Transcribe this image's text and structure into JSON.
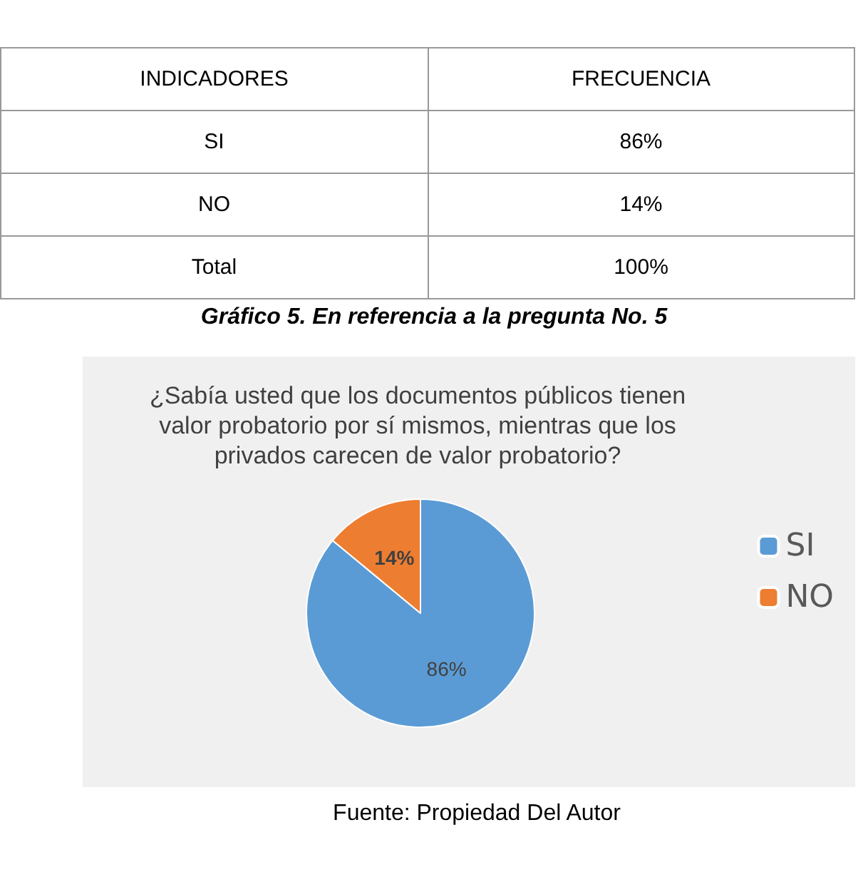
{
  "chart_data": {
    "type": "pie",
    "title": "¿Sabía usted que los documentos públicos tienen\nvalor probatorio por sí mismos, mientras que los\nprivados carecen de valor probatorio?",
    "categories": [
      "SI",
      "NO"
    ],
    "values": [
      86,
      14
    ],
    "value_labels": [
      "86%",
      "14%"
    ],
    "colors": [
      "#5b9bd5",
      "#ed7d31"
    ],
    "legend": "right",
    "annotations": [
      "INDICADORES",
      "FRECUENCIA",
      "Total",
      "100%",
      "Gráfico 5. En referencia a la pregunta No. 5",
      "Fuente: Propiedad Del Autor"
    ]
  }
}
